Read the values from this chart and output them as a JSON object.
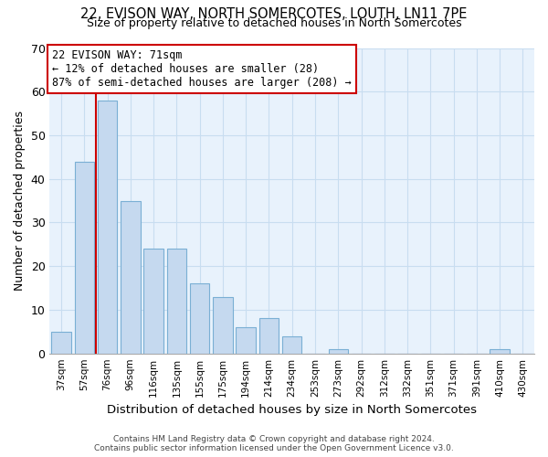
{
  "title": "22, EVISON WAY, NORTH SOMERCOTES, LOUTH, LN11 7PE",
  "subtitle": "Size of property relative to detached houses in North Somercotes",
  "xlabel": "Distribution of detached houses by size in North Somercotes",
  "ylabel": "Number of detached properties",
  "bar_labels": [
    "37sqm",
    "57sqm",
    "76sqm",
    "96sqm",
    "116sqm",
    "135sqm",
    "155sqm",
    "175sqm",
    "194sqm",
    "214sqm",
    "234sqm",
    "253sqm",
    "273sqm",
    "292sqm",
    "312sqm",
    "332sqm",
    "351sqm",
    "371sqm",
    "391sqm",
    "410sqm",
    "430sqm"
  ],
  "bar_values": [
    5,
    44,
    58,
    35,
    24,
    24,
    16,
    13,
    6,
    8,
    4,
    0,
    1,
    0,
    0,
    0,
    0,
    0,
    0,
    1,
    0
  ],
  "bar_color": "#c5d9ef",
  "bar_edge_color": "#7aafd4",
  "vline_color": "#cc0000",
  "annotation_text": "22 EVISON WAY: 71sqm\n← 12% of detached houses are smaller (28)\n87% of semi-detached houses are larger (208) →",
  "annotation_box_color": "#ffffff",
  "annotation_box_edge_color": "#cc0000",
  "ylim": [
    0,
    70
  ],
  "yticks": [
    0,
    10,
    20,
    30,
    40,
    50,
    60,
    70
  ],
  "grid_color": "#c8ddf0",
  "bg_color": "#e8f2fc",
  "footer_line1": "Contains HM Land Registry data © Crown copyright and database right 2024.",
  "footer_line2": "Contains public sector information licensed under the Open Government Licence v3.0."
}
